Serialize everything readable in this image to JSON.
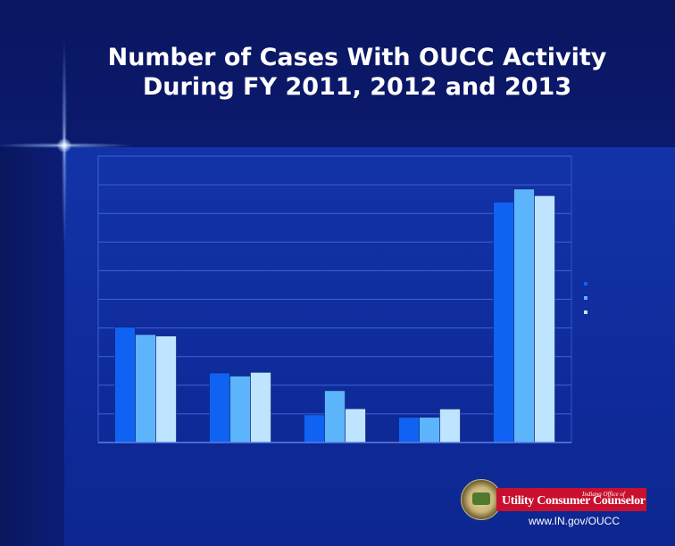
{
  "slide": {
    "title_line1": "Number of Cases With OUCC Activity",
    "title_line2": "During FY 2011, 2012 and 2013",
    "logo_text": "Utility Consumer Counselor",
    "logo_subtext": "Indiana Office of",
    "url": "www.IN.gov/OUCC"
  },
  "colors": {
    "series_2011": "#0f62f2",
    "series_2012": "#5cb5fb",
    "series_2013": "#bfe4ff",
    "background": "#0b1a7a"
  },
  "chart_data": {
    "type": "bar",
    "title": "",
    "xlabel": "",
    "ylabel": "",
    "ylim": [
      0,
      1000
    ],
    "grid": true,
    "categories": [
      "",
      "",
      "",
      "",
      ""
    ],
    "series": [
      {
        "values": [
          403,
          243,
          97,
          88,
          840
        ]
      },
      {
        "values": [
          377,
          232,
          181,
          88,
          885
        ]
      },
      {
        "values": [
          372,
          245,
          118,
          117,
          862
        ]
      }
    ]
  }
}
